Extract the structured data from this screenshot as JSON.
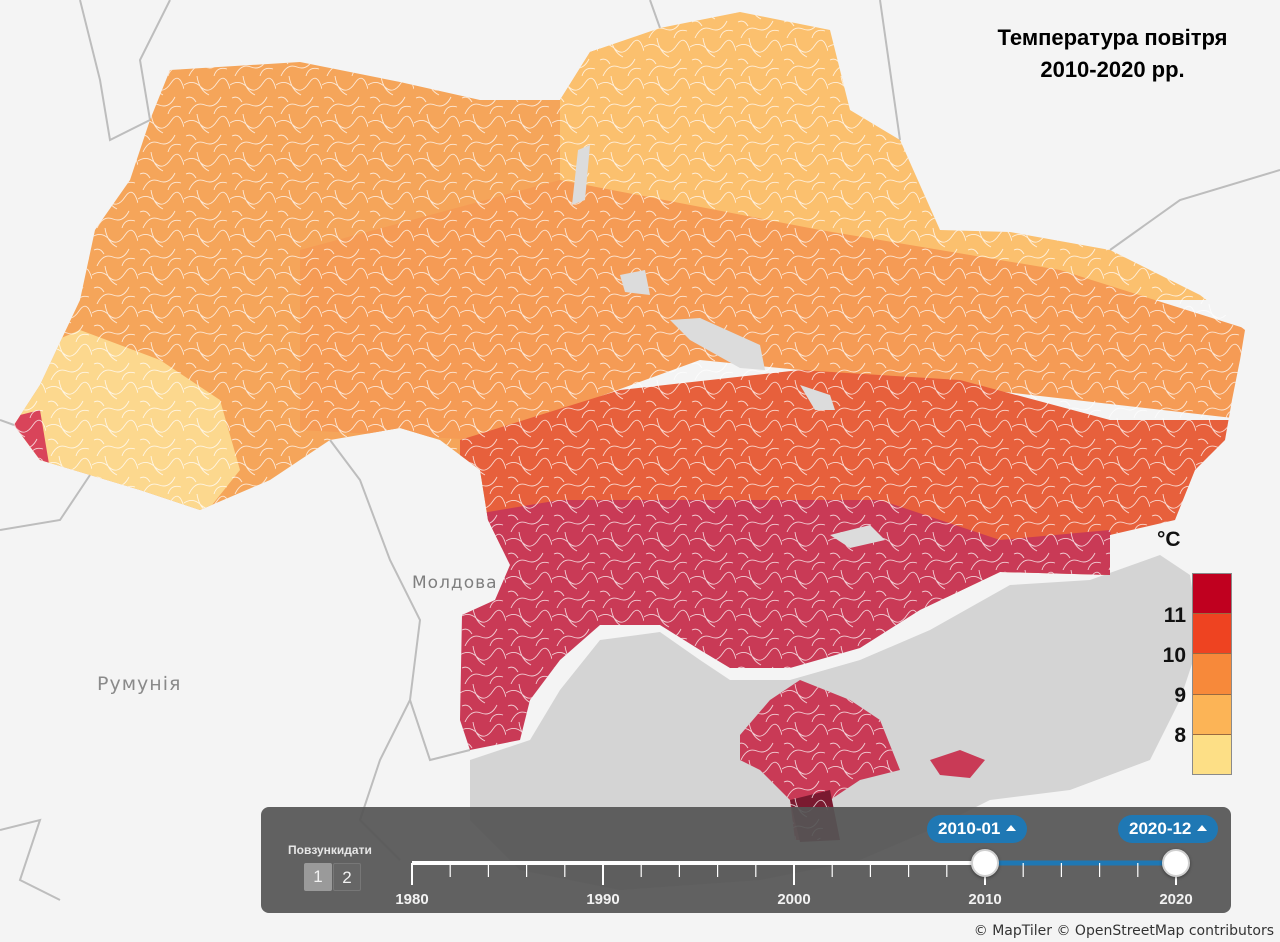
{
  "title": {
    "line1": "Температура повітря",
    "line2": "2010-2020 рр."
  },
  "map_labels": {
    "moldova": "Молдова",
    "romania": "Румунія"
  },
  "legend": {
    "unit": "°C",
    "ticks": [
      "11",
      "10",
      "9",
      "8"
    ],
    "colors": [
      "#c0001f",
      "#ee4321",
      "#f7893a",
      "#fcb456",
      "#fddf86"
    ]
  },
  "map_colors": {
    "land_bg": "#f4f4f4",
    "sea": "#d4d4d4",
    "border": "#bdbdbd",
    "river_lines": "#ffffff",
    "zone_north": "#fbc06e",
    "zone_west": "#f5a55a",
    "zone_center": "#f59b55",
    "zone_mid_south": "#e7603c",
    "zone_south": "#c93a56",
    "zone_crimea": "#c93a56",
    "zone_west_light": "#fcd88e"
  },
  "timeline": {
    "label": "Повзункидати",
    "pages": [
      "1",
      "2"
    ],
    "axis_start": 1980,
    "axis_end": 2020,
    "axis_labels": [
      "1980",
      "1990",
      "2000",
      "2010",
      "2020"
    ],
    "range_start": "2010-01",
    "range_end": "2020-12",
    "range_start_year": 2010,
    "range_end_year": 2020,
    "accent": "#1f78b4"
  },
  "attribution": "© MapTiler © OpenStreetMap contributors"
}
